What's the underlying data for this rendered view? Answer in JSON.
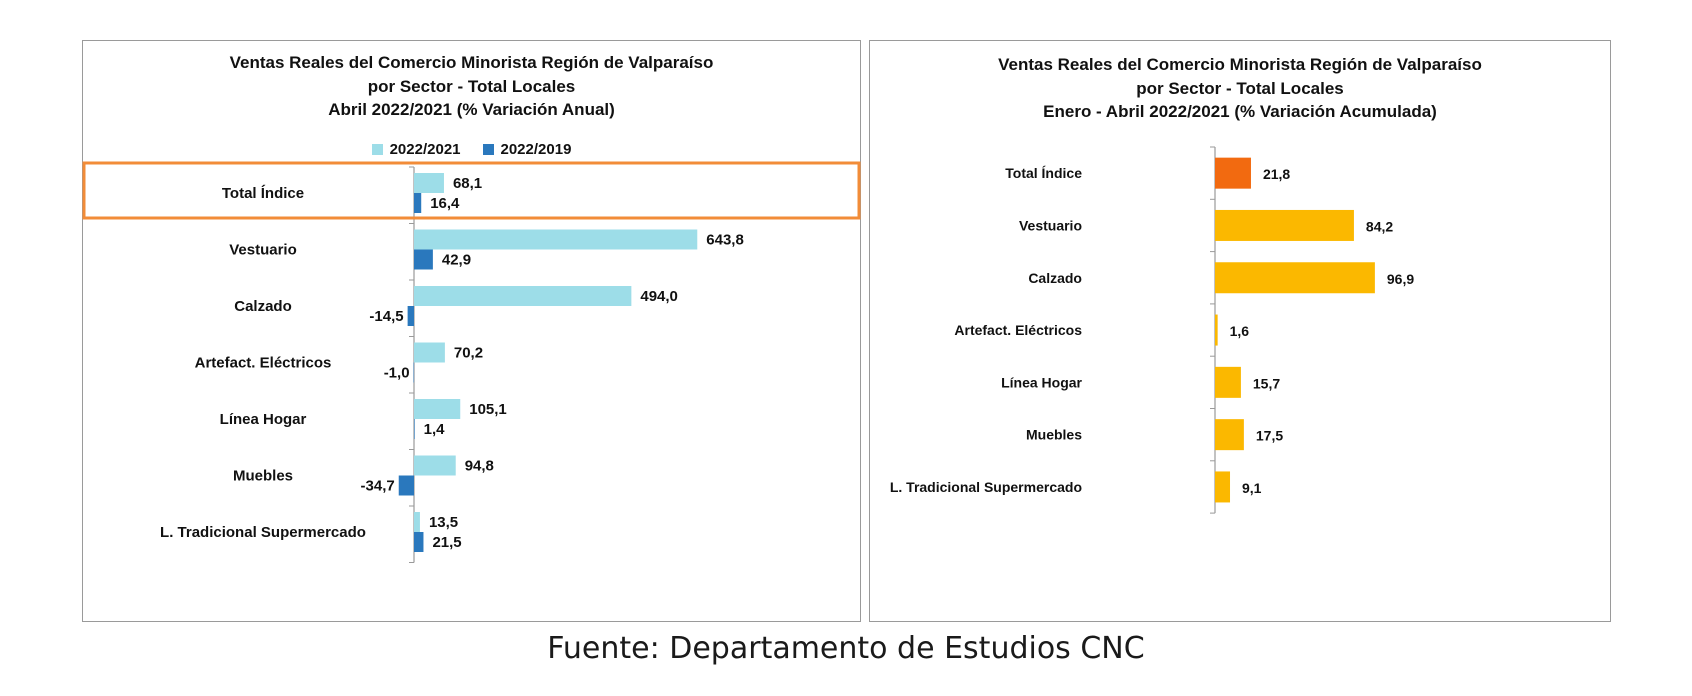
{
  "chart_data": [
    {
      "type": "bar",
      "orientation": "horizontal",
      "title": [
        "Ventas Reales del Comercio Minorista Región de Valparaíso",
        "por Sector - Total Locales",
        "Abril 2022/2021 (% Variación Anual)"
      ],
      "categories": [
        "Total Índice",
        "Vestuario",
        "Calzado",
        "Artefact. Eléctricos",
        "Línea Hogar",
        "Muebles",
        "L. Tradicional Supermercado"
      ],
      "series": [
        {
          "name": "2022/2021",
          "values": [
            68.1,
            643.8,
            494.0,
            70.2,
            105.1,
            94.8,
            13.5
          ],
          "labels": [
            "68,1",
            "643,8",
            "494,0",
            "70,2",
            "105,1",
            "94,8",
            "13,5"
          ],
          "color": "#9ddde8"
        },
        {
          "name": "2022/2019",
          "values": [
            16.4,
            42.9,
            -14.5,
            -1.0,
            1.4,
            -34.7,
            21.5
          ],
          "labels": [
            "16,4",
            "42,9",
            "-14,5",
            "-1,0",
            "1,4",
            "-34,7",
            "21,5"
          ],
          "color": "#2a78bd"
        }
      ],
      "highlight_category": "Total Índice",
      "highlight_color": "#f28c38",
      "legend": "top",
      "grid": false
    },
    {
      "type": "bar",
      "orientation": "horizontal",
      "title": [
        "Ventas Reales del Comercio Minorista Región de Valparaíso",
        "por Sector  - Total Locales",
        "Enero - Abril 2022/2021 (% Variación Acumulada)"
      ],
      "categories": [
        "Total Índice",
        "Vestuario",
        "Calzado",
        "Artefact. Eléctricos",
        "Línea Hogar",
        "Muebles",
        "L. Tradicional Supermercado"
      ],
      "values": [
        21.8,
        84.2,
        96.9,
        1.6,
        15.7,
        17.5,
        9.1
      ],
      "labels": [
        "21,8",
        "84,2",
        "96,9",
        "1,6",
        "15,7",
        "17,5",
        "9,1"
      ],
      "colors": [
        "#f26a10",
        "#fbb800",
        "#fbb800",
        "#fbb800",
        "#fbb800",
        "#fbb800",
        "#fbb800"
      ],
      "grid": false
    }
  ],
  "footer": "Fuente: Departamento de Estudios CNC"
}
